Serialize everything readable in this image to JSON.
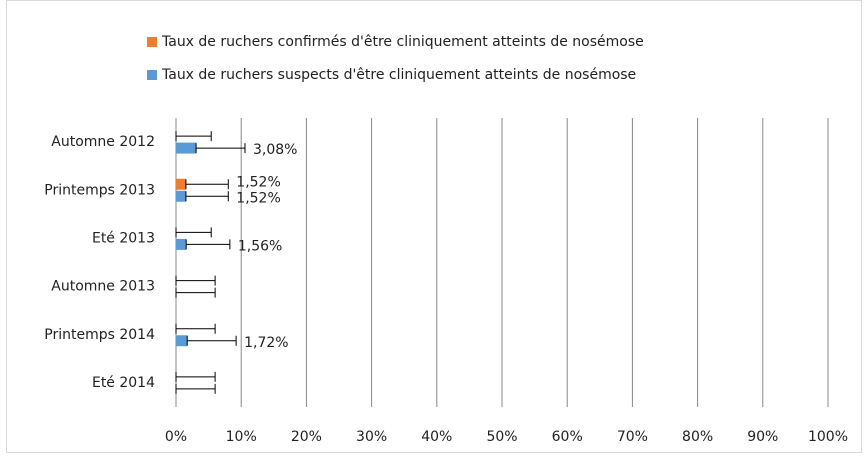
{
  "chart_data": {
    "type": "bar",
    "orientation": "horizontal",
    "categories": [
      "Automne 2012",
      "Printemps 2013",
      "Eté 2013",
      "Automne 2013",
      "Printemps 2014",
      "Eté 2014"
    ],
    "series": [
      {
        "name": "Taux de ruchers confirmés d'être cliniquement atteints de nosémose",
        "color": "#ed7d31",
        "values": [
          0,
          1.52,
          0,
          0,
          0,
          0
        ],
        "errors": [
          5.4,
          6.5,
          5.4,
          6,
          6,
          6
        ],
        "value_labels": [
          null,
          "1,52%",
          null,
          null,
          null,
          null
        ]
      },
      {
        "name": "Taux de ruchers suspects d'être cliniquement atteints de nosémose",
        "color": "#5b9bd5",
        "values": [
          3.08,
          1.52,
          1.56,
          0,
          1.72,
          0
        ],
        "errors": [
          7.5,
          6.5,
          6.7,
          6,
          7.5,
          6
        ],
        "value_labels": [
          "3,08%",
          "1,52%",
          "1,56%",
          null,
          "1,72%",
          null
        ]
      }
    ],
    "xlim": [
      0,
      100
    ],
    "xticks": [
      {
        "value": 0,
        "label": "0%"
      },
      {
        "value": 10,
        "label": "10%"
      },
      {
        "value": 20,
        "label": "20%"
      },
      {
        "value": 30,
        "label": "30%"
      },
      {
        "value": 40,
        "label": "40%"
      },
      {
        "value": 50,
        "label": "50%"
      },
      {
        "value": 60,
        "label": "60%"
      },
      {
        "value": 70,
        "label": "70%"
      },
      {
        "value": 80,
        "label": "80%"
      },
      {
        "value": 90,
        "label": "90%"
      },
      {
        "value": 100,
        "label": "100%"
      }
    ],
    "grid": true,
    "legend": "top"
  }
}
